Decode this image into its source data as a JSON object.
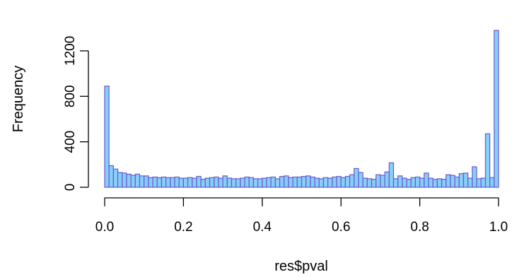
{
  "chart_data": {
    "type": "bar",
    "subtype": "histogram",
    "xlabel": "res$pval",
    "ylabel": "Frequency",
    "xlim": [
      0,
      1
    ],
    "ylim": [
      0,
      1380
    ],
    "x_ticks": [
      0,
      0.2,
      0.4,
      0.6,
      0.8,
      1
    ],
    "x_tick_labels": [
      "0.0",
      "0.2",
      "0.4",
      "0.6",
      "0.8",
      "1.0"
    ],
    "y_ticks": [
      0,
      400,
      800,
      1200
    ],
    "y_tick_labels": [
      "0",
      "400",
      "800",
      "1200"
    ],
    "bin_width": 0.01,
    "bar_fill": "#87CEFA",
    "bar_stroke": "#6A5ACD",
    "grid": false,
    "values": [
      890,
      190,
      160,
      130,
      125,
      115,
      105,
      115,
      100,
      100,
      85,
      90,
      85,
      90,
      85,
      85,
      90,
      80,
      80,
      85,
      80,
      95,
      70,
      80,
      85,
      90,
      80,
      100,
      80,
      75,
      75,
      80,
      90,
      85,
      75,
      75,
      80,
      85,
      90,
      75,
      95,
      100,
      85,
      90,
      90,
      95,
      100,
      90,
      80,
      75,
      85,
      80,
      90,
      95,
      85,
      95,
      110,
      165,
      130,
      80,
      75,
      70,
      110,
      105,
      135,
      215,
      75,
      100,
      80,
      70,
      85,
      90,
      80,
      125,
      80,
      70,
      75,
      70,
      110,
      105,
      90,
      120,
      125,
      80,
      180,
      75,
      80,
      470,
      85,
      1380
    ],
    "bin_start": 0.01,
    "bins_note_first": 0.0
  }
}
